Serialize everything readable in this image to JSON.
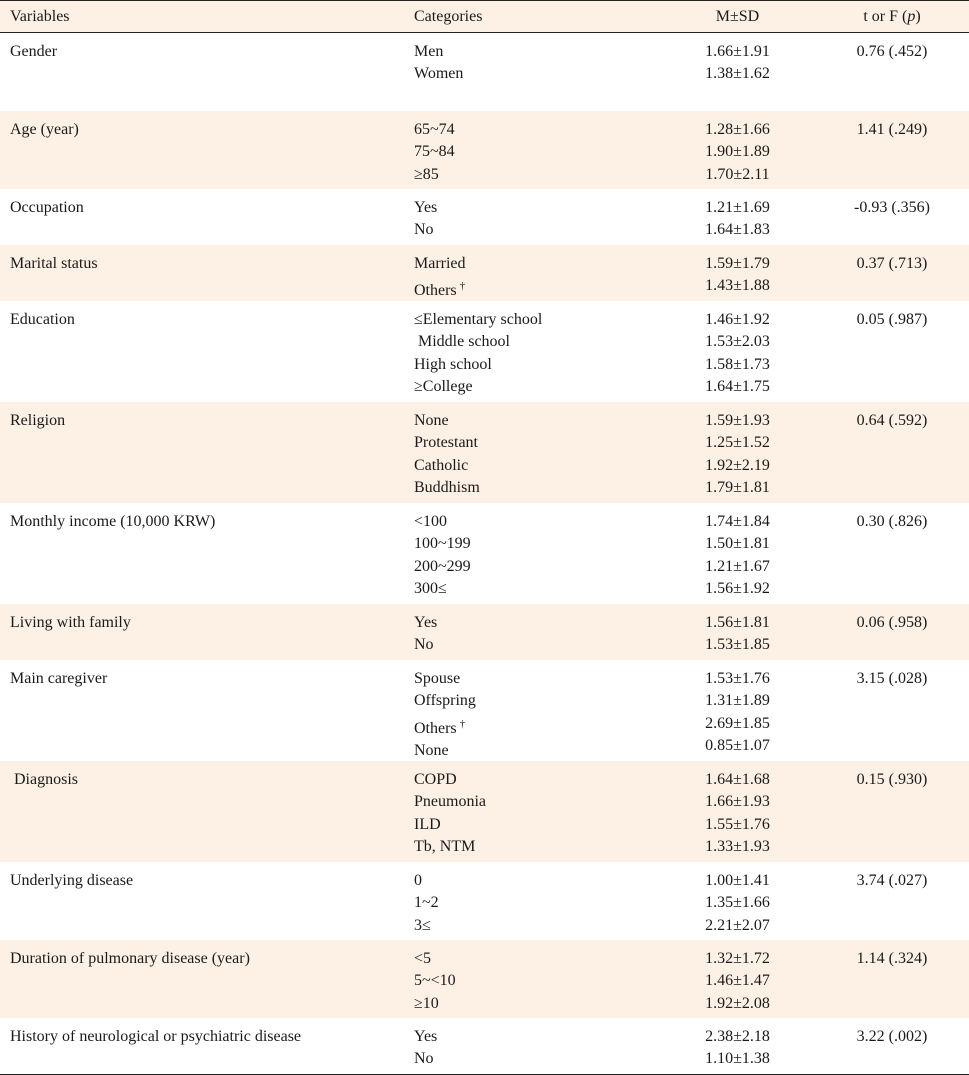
{
  "header": {
    "variables": "Variables",
    "categories": "Categories",
    "msd": "M±SD",
    "tf_prefix": "t or F (",
    "tf_p": "p",
    "tf_suffix": ")"
  },
  "groups": [
    {
      "variable": "Gender",
      "stat": "0.76 (.452)",
      "rows": [
        {
          "cat": "Men",
          "msd": "1.66±1.91"
        },
        {
          "cat": "Women",
          "msd": "1.38±1.62"
        }
      ]
    },
    {
      "variable": "Age (year)",
      "stat": "1.41 (.249)",
      "rows": [
        {
          "cat": "65~74",
          "msd": "1.28±1.66"
        },
        {
          "cat": "75~84",
          "msd": "1.90±1.89"
        },
        {
          "cat": "≥85",
          "msd": "1.70±2.11"
        }
      ]
    },
    {
      "variable": "Occupation",
      "stat": "-0.93 (.356)",
      "rows": [
        {
          "cat": "Yes",
          "msd": "1.21±1.69"
        },
        {
          "cat": "No",
          "msd": "1.64±1.83"
        }
      ]
    },
    {
      "variable": "Marital status",
      "stat": "0.37 (.713)",
      "rows": [
        {
          "cat": "Married",
          "msd": "1.59±1.79"
        },
        {
          "cat": "Others",
          "sup": "†",
          "msd": "1.43±1.88"
        }
      ]
    },
    {
      "variable": "Education",
      "stat": "0.05 (.987)",
      "rows": [
        {
          "cat": "≤Elementary school",
          "msd": "1.46±1.92"
        },
        {
          "cat": " Middle school",
          "msd": "1.53±2.03"
        },
        {
          "cat": "High school",
          "msd": "1.58±1.73"
        },
        {
          "cat": "≥College",
          "msd": "1.64±1.75"
        }
      ]
    },
    {
      "variable": "Religion",
      "stat": "0.64 (.592)",
      "rows": [
        {
          "cat": "None",
          "msd": "1.59±1.93"
        },
        {
          "cat": "Protestant",
          "msd": "1.25±1.52"
        },
        {
          "cat": "Catholic",
          "msd": "1.92±2.19"
        },
        {
          "cat": "Buddhism",
          "msd": "1.79±1.81"
        }
      ]
    },
    {
      "variable": "Monthly income (10,000 KRW)",
      "stat": "0.30 (.826)",
      "rows": [
        {
          "cat": "<100",
          "msd": "1.74±1.84"
        },
        {
          "cat": "100~199",
          "msd": "1.50±1.81"
        },
        {
          "cat": "200~299",
          "msd": "1.21±1.67"
        },
        {
          "cat": "300≤",
          "msd": "1.56±1.92"
        }
      ]
    },
    {
      "variable": "Living with family",
      "stat": "0.06 (.958)",
      "rows": [
        {
          "cat": "Yes",
          "msd": "1.56±1.81"
        },
        {
          "cat": "No",
          "msd": "1.53±1.85"
        }
      ]
    },
    {
      "variable": "Main caregiver",
      "stat": "3.15 (.028)",
      "rows": [
        {
          "cat": "Spouse",
          "msd": "1.53±1.76"
        },
        {
          "cat": "Offspring",
          "msd": "1.31±1.89"
        },
        {
          "cat": "Others",
          "sup": "†",
          "msd": "2.69±1.85"
        },
        {
          "cat": "None",
          "msd": "0.85±1.07"
        }
      ]
    },
    {
      "variable": " Diagnosis",
      "stat": "0.15 (.930)",
      "rows": [
        {
          "cat": "COPD",
          "msd": "1.64±1.68"
        },
        {
          "cat": "Pneumonia",
          "msd": "1.66±1.93"
        },
        {
          "cat": "ILD",
          "msd": "1.55±1.76"
        },
        {
          "cat": "Tb, NTM",
          "msd": "1.33±1.93"
        }
      ]
    },
    {
      "variable": "Underlying disease",
      "stat": "3.74 (.027)",
      "rows": [
        {
          "cat": "0",
          "msd": "1.00±1.41"
        },
        {
          "cat": "1~2",
          "msd": "1.35±1.66"
        },
        {
          "cat": "3≤",
          "msd": "2.21±2.07"
        }
      ]
    },
    {
      "variable": "Duration of pulmonary disease (year)",
      "stat": "1.14 (.324)",
      "rows": [
        {
          "cat": "<5",
          "msd": "1.32±1.72"
        },
        {
          "cat": "5~<10",
          "msd": "1.46±1.47"
        },
        {
          "cat": "≥10",
          "msd": "1.92±2.08"
        }
      ]
    },
    {
      "variable": "History of neurological or psychiatric disease",
      "stat": "3.22 (.002)",
      "rows": [
        {
          "cat": "Yes",
          "msd": "2.38±2.18"
        },
        {
          "cat": "No",
          "msd": "1.10±1.38"
        }
      ]
    }
  ]
}
